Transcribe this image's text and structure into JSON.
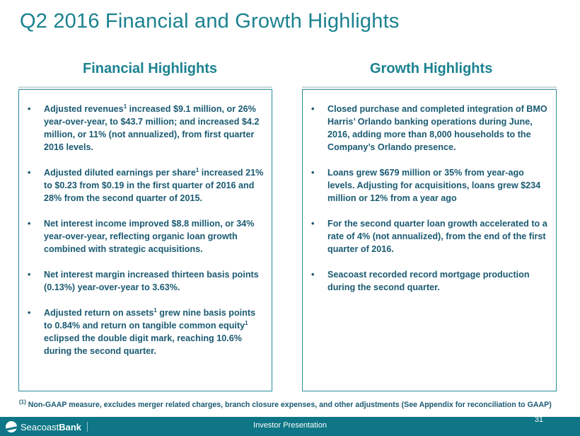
{
  "title": "Q2 2016 Financial and Growth Highlights",
  "left": {
    "heading": "Financial Highlights",
    "items": [
      {
        "pre": "Adjusted revenues",
        "sup": "1",
        "post": " increased $9.1 million, or 26% year-over-year, to $43.7 million; and increased $4.2 million, or 11% (not annualized), from first quarter 2016 levels."
      },
      {
        "pre": "Adjusted diluted earnings per share",
        "sup": "1",
        "post": " increased 21% to $0.23 from $0.19 in the first quarter of 2016 and 28% from the second quarter of 2015."
      },
      {
        "pre": "Net interest income improved $8.8 million, or 34% year-over-year, reflecting organic loan growth combined with strategic acquisitions.",
        "sup": "",
        "post": ""
      },
      {
        "pre": "Net interest margin increased thirteen basis points (0.13%) year-over-year to 3.63%.",
        "sup": "",
        "post": ""
      },
      {
        "pre": "Adjusted return on assets",
        "sup": "1",
        "post": " grew nine basis points to 0.84% and return on tangible common equity",
        "sup2": "1",
        "post2": " eclipsed the double digit mark, reaching 10.6% during the second quarter."
      }
    ]
  },
  "right": {
    "heading": "Growth Highlights",
    "items": [
      "Closed purchase and completed integration of BMO Harris’ Orlando banking operations during June, 2016, adding more than 8,000 households to the Company’s Orlando presence.",
      "Loans grew $679 million or 35% from year-ago levels.  Adjusting for acquisitions, loans grew $234 million or 12% from a year ago",
      "For the second quarter loan growth accelerated to a rate of 4% (not annualized), from the end of the first quarter of 2016.",
      "Seacoast recorded record mortgage production during the second quarter."
    ]
  },
  "bullet_char": "•",
  "footnote": {
    "marker": "(1)",
    "text": " Non-GAAP measure, excludes merger related charges, branch closure expenses, and other adjustments (See Appendix for reconciliation to GAAP)"
  },
  "footer": {
    "logo_part1": "Seacoast",
    "logo_part2": "Bank",
    "center": "Investor Presentation",
    "page": "31"
  },
  "colors": {
    "accent": "#1b8290",
    "body_text": "#1a5a72",
    "footer_bg": "#0e7686"
  }
}
